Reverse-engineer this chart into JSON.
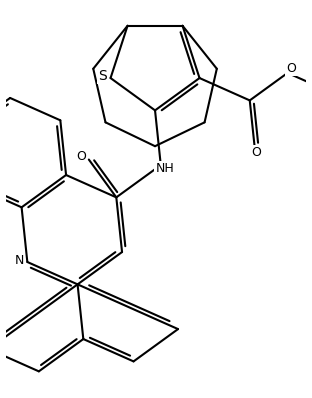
{
  "background_color": "#ffffff",
  "line_color": "#000000",
  "line_width": 1.5,
  "font_size": 9,
  "figsize": [
    3.12,
    3.98
  ],
  "dpi": 100,
  "xlim": [
    0,
    312
  ],
  "ylim": [
    0,
    398
  ]
}
